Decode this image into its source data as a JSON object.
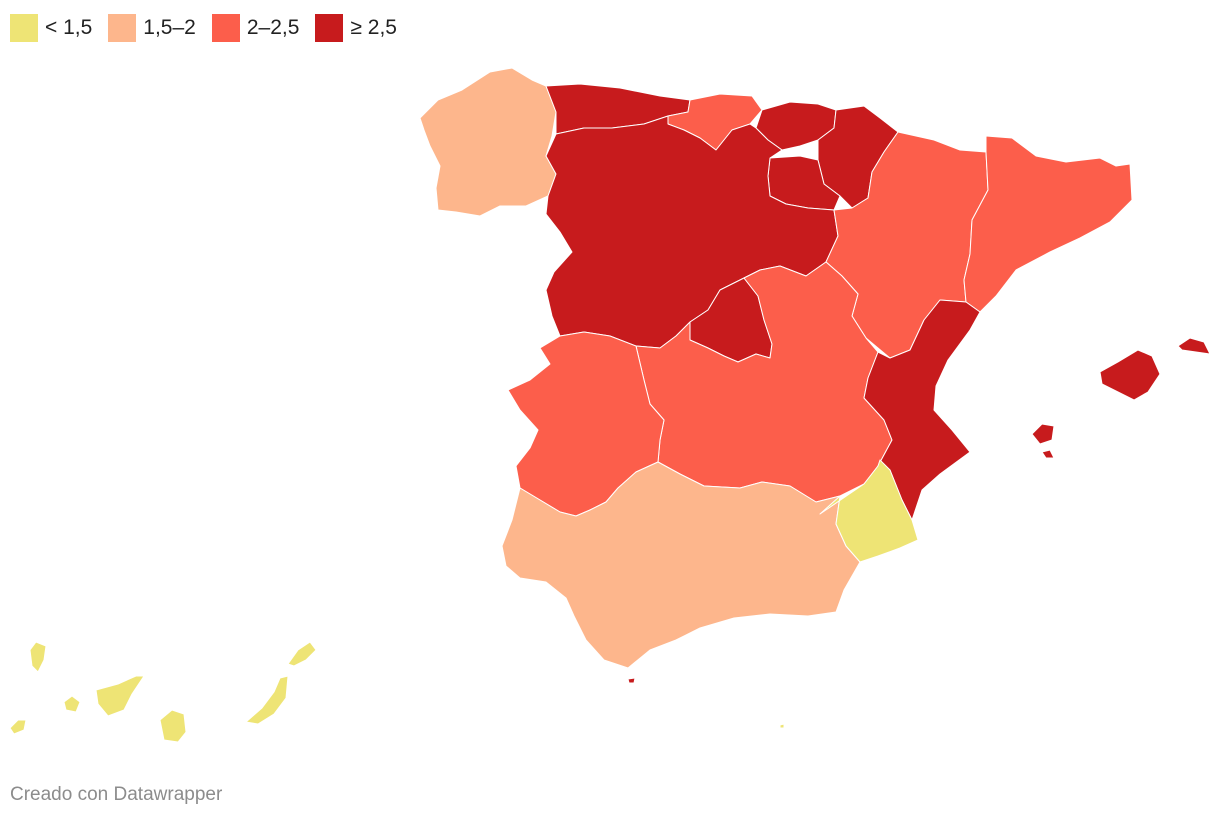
{
  "legend": [
    {
      "label": "< 1,5",
      "color": "#eee475"
    },
    {
      "label": "1,5–2",
      "color": "#fdb68c"
    },
    {
      "label": "2–2,5",
      "color": "#fc5e4b"
    },
    {
      "label": "≥ 2,5",
      "color": "#c71b1d"
    }
  ],
  "regions": [
    {
      "name": "Galicia",
      "bin": 1
    },
    {
      "name": "Asturias",
      "bin": 3
    },
    {
      "name": "Cantabria",
      "bin": 2
    },
    {
      "name": "País Vasco",
      "bin": 3
    },
    {
      "name": "Navarra",
      "bin": 3
    },
    {
      "name": "La Rioja",
      "bin": 3
    },
    {
      "name": "Castilla y León",
      "bin": 3
    },
    {
      "name": "Aragón",
      "bin": 2
    },
    {
      "name": "Cataluña",
      "bin": 2
    },
    {
      "name": "Madrid",
      "bin": 3
    },
    {
      "name": "Castilla-La Mancha",
      "bin": 2
    },
    {
      "name": "Extremadura",
      "bin": 2
    },
    {
      "name": "Comunitat Valenciana",
      "bin": 3
    },
    {
      "name": "Andalucía",
      "bin": 1
    },
    {
      "name": "Murcia",
      "bin": 0
    },
    {
      "name": "Illes Balears",
      "bin": 3
    },
    {
      "name": "Canarias",
      "bin": 0
    },
    {
      "name": "Ceuta",
      "bin": 3
    },
    {
      "name": "Melilla",
      "bin": 0
    }
  ],
  "credit": "Creado con Datawrapper"
}
